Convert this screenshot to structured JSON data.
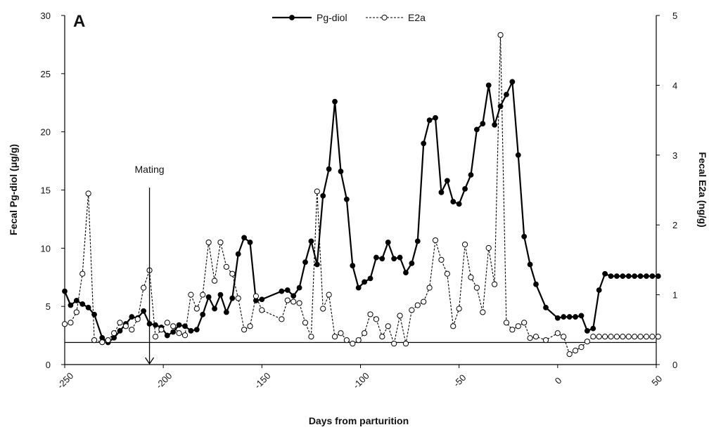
{
  "chart_data": {
    "type": "line",
    "panel_label": "A",
    "xlabel": "Days from parturition",
    "ylabel_left": "Fecal Pg-diol (μg/g)",
    "ylabel_right": "Fecal E2a (ng/g)",
    "xlim": [
      -250,
      50
    ],
    "ylim_left": [
      0,
      30
    ],
    "ylim_right": [
      0,
      5
    ],
    "x_ticks": [
      "-250",
      "-200",
      "-150",
      "-100",
      "-50",
      "0",
      "50"
    ],
    "y_ticks_left": [
      "0",
      "5",
      "10",
      "15",
      "20",
      "25",
      "30"
    ],
    "y_ticks_right": [
      "0",
      "1",
      "2",
      "3",
      "4",
      "5"
    ],
    "legend_position": "top-center",
    "grid": false,
    "baseline_left": 1.9,
    "annotation": {
      "text": "Mating",
      "x": -207,
      "arrow_from_y": 15.2,
      "arrow_to_y": 0
    },
    "series": [
      {
        "name": "Pg-diol",
        "axis": "left",
        "style": "solid",
        "marker": "filled-circle",
        "color": "#000000",
        "x": [
          -250,
          -247,
          -244,
          -241,
          -238,
          -235,
          -231,
          -228,
          -225,
          -222,
          -219,
          -216,
          -213,
          -210,
          -207,
          -204,
          -201,
          -198,
          -195,
          -192,
          -189,
          -186,
          -183,
          -180,
          -177,
          -174,
          -171,
          -168,
          -165,
          -162,
          -159,
          -156,
          -153,
          -150,
          -140,
          -137,
          -134,
          -131,
          -128,
          -125,
          -122,
          -119,
          -116,
          -113,
          -110,
          -107,
          -104,
          -101,
          -98,
          -95,
          -92,
          -89,
          -86,
          -83,
          -80,
          -77,
          -74,
          -71,
          -68,
          -65,
          -62,
          -59,
          -56,
          -53,
          -50,
          -47,
          -44,
          -41,
          -38,
          -35,
          -32,
          -29,
          -26,
          -23,
          -20,
          -17,
          -14,
          -11,
          -6,
          0,
          3,
          6,
          9,
          12,
          15,
          18,
          21,
          24,
          27,
          30,
          33,
          36,
          39,
          42,
          45,
          48,
          51
        ],
        "y": [
          6.3,
          5.1,
          5.5,
          5.2,
          4.9,
          4.3,
          2.3,
          1.9,
          2.3,
          2.9,
          3.5,
          4.1,
          4.0,
          4.6,
          3.5,
          3.4,
          3.2,
          2.5,
          2.8,
          3.4,
          3.3,
          2.9,
          3.0,
          4.3,
          5.8,
          4.8,
          6.0,
          4.5,
          5.7,
          9.5,
          10.9,
          10.5,
          5.5,
          5.6,
          6.3,
          6.4,
          5.9,
          6.6,
          8.8,
          10.6,
          8.6,
          14.5,
          16.8,
          22.6,
          16.6,
          14.2,
          8.5,
          6.6,
          7.1,
          7.4,
          9.2,
          9.1,
          10.5,
          9.1,
          9.2,
          7.9,
          8.7,
          10.6,
          19.0,
          21.0,
          21.2,
          14.8,
          15.8,
          14.0,
          13.8,
          15.1,
          16.3,
          20.2,
          20.7,
          24.0,
          20.6,
          22.2,
          23.2,
          24.3,
          18.0,
          11.0,
          8.6,
          6.9,
          4.9,
          4.0,
          4.1,
          4.1,
          4.1,
          4.2,
          2.9,
          3.1,
          6.4,
          7.8,
          7.6,
          7.6,
          7.6,
          7.6,
          7.6,
          7.6,
          7.6,
          7.6,
          7.6
        ]
      },
      {
        "name": "E2a",
        "axis": "right",
        "style": "dashed",
        "marker": "open-circle",
        "color": "#000000",
        "x": [
          -250,
          -247,
          -244,
          -241,
          -238,
          -235,
          -231,
          -228,
          -225,
          -222,
          -219,
          -216,
          -213,
          -210,
          -207,
          -204,
          -201,
          -198,
          -195,
          -192,
          -189,
          -186,
          -183,
          -180,
          -177,
          -174,
          -171,
          -168,
          -165,
          -162,
          -159,
          -156,
          -153,
          -150,
          -140,
          -137,
          -134,
          -131,
          -128,
          -125,
          -122,
          -119,
          -116,
          -113,
          -110,
          -107,
          -104,
          -101,
          -98,
          -95,
          -92,
          -89,
          -86,
          -83,
          -80,
          -77,
          -74,
          -71,
          -68,
          -65,
          -62,
          -59,
          -56,
          -53,
          -50,
          -47,
          -44,
          -41,
          -38,
          -35,
          -32,
          -29,
          -26,
          -23,
          -20,
          -17,
          -14,
          -11,
          -6,
          0,
          3,
          6,
          9,
          12,
          15,
          18,
          21,
          24,
          27,
          30,
          33,
          36,
          39,
          42,
          45,
          48,
          51
        ],
        "y": [
          0.58,
          0.6,
          0.75,
          1.3,
          2.45,
          0.35,
          0.32,
          0.35,
          0.45,
          0.6,
          0.55,
          0.5,
          0.65,
          1.1,
          1.35,
          0.4,
          0.5,
          0.6,
          0.55,
          0.45,
          0.42,
          1.0,
          0.8,
          1.0,
          1.75,
          1.2,
          1.75,
          1.4,
          1.3,
          0.95,
          0.5,
          0.55,
          0.98,
          0.78,
          0.65,
          0.92,
          0.9,
          0.88,
          0.6,
          0.4,
          2.48,
          0.8,
          1.0,
          0.4,
          0.45,
          0.35,
          0.3,
          0.35,
          0.45,
          0.72,
          0.65,
          0.4,
          0.55,
          0.3,
          0.7,
          0.3,
          0.78,
          0.85,
          0.9,
          1.1,
          1.78,
          1.5,
          1.3,
          0.55,
          0.8,
          1.72,
          1.25,
          1.1,
          0.75,
          1.67,
          1.15,
          4.72,
          0.6,
          0.5,
          0.55,
          0.6,
          0.38,
          0.4,
          0.35,
          0.45,
          0.4,
          0.15,
          0.2,
          0.25,
          0.33,
          0.4,
          0.4,
          0.4,
          0.4,
          0.4,
          0.4,
          0.4,
          0.4,
          0.4,
          0.4,
          0.4,
          0.4
        ]
      }
    ]
  }
}
